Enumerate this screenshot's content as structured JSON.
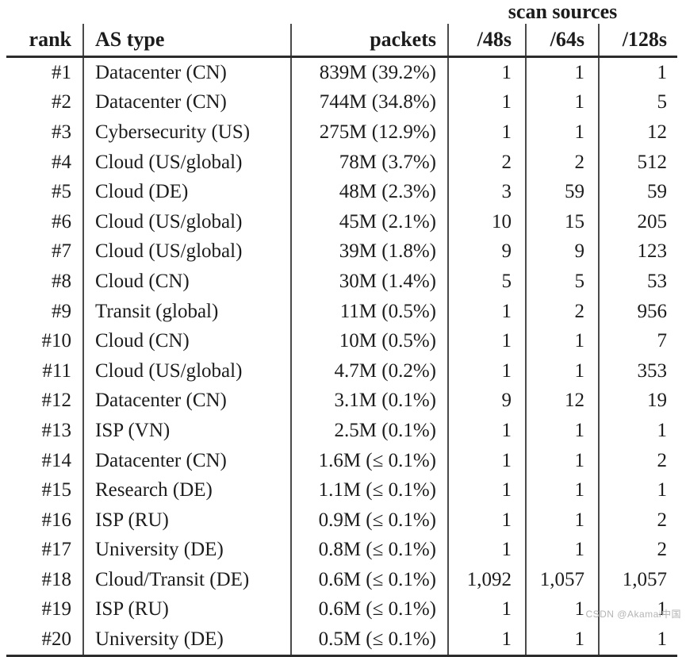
{
  "table": {
    "group_header": "scan sources",
    "columns": [
      {
        "key": "rank",
        "label": "rank"
      },
      {
        "key": "as_type",
        "label": "AS type"
      },
      {
        "key": "packets",
        "label": "packets"
      },
      {
        "key": "s48",
        "label": "/48s"
      },
      {
        "key": "s64",
        "label": "/64s"
      },
      {
        "key": "s128",
        "label": "/128s"
      }
    ],
    "rows": [
      [
        "#1",
        "Datacenter (CN)",
        "839M (39.2%)",
        "1",
        "1",
        "1"
      ],
      [
        "#2",
        "Datacenter (CN)",
        "744M (34.8%)",
        "1",
        "1",
        "5"
      ],
      [
        "#3",
        "Cybersecurity (US)",
        "275M (12.9%)",
        "1",
        "1",
        "12"
      ],
      [
        "#4",
        "Cloud (US/global)",
        "78M (3.7%)",
        "2",
        "2",
        "512"
      ],
      [
        "#5",
        "Cloud (DE)",
        "48M (2.3%)",
        "3",
        "59",
        "59"
      ],
      [
        "#6",
        "Cloud (US/global)",
        "45M (2.1%)",
        "10",
        "15",
        "205"
      ],
      [
        "#7",
        "Cloud (US/global)",
        "39M (1.8%)",
        "9",
        "9",
        "123"
      ],
      [
        "#8",
        "Cloud (CN)",
        "30M (1.4%)",
        "5",
        "5",
        "53"
      ],
      [
        "#9",
        "Transit (global)",
        "11M (0.5%)",
        "1",
        "2",
        "956"
      ],
      [
        "#10",
        "Cloud (CN)",
        "10M (0.5%)",
        "1",
        "1",
        "7"
      ],
      [
        "#11",
        "Cloud (US/global)",
        "4.7M (0.2%)",
        "1",
        "1",
        "353"
      ],
      [
        "#12",
        "Datacenter (CN)",
        "3.1M (0.1%)",
        "9",
        "12",
        "19"
      ],
      [
        "#13",
        "ISP (VN)",
        "2.5M (0.1%)",
        "1",
        "1",
        "1"
      ],
      [
        "#14",
        "Datacenter (CN)",
        "1.6M (≤ 0.1%)",
        "1",
        "1",
        "2"
      ],
      [
        "#15",
        "Research (DE)",
        "1.1M (≤ 0.1%)",
        "1",
        "1",
        "1"
      ],
      [
        "#16",
        "ISP (RU)",
        "0.9M (≤ 0.1%)",
        "1",
        "1",
        "2"
      ],
      [
        "#17",
        "University (DE)",
        "0.8M (≤ 0.1%)",
        "1",
        "1",
        "2"
      ],
      [
        "#18",
        "Cloud/Transit (DE)",
        "0.6M (≤ 0.1%)",
        "1,092",
        "1,057",
        "1,057"
      ],
      [
        "#19",
        "ISP (RU)",
        "0.6M (≤ 0.1%)",
        "1",
        "1",
        "1"
      ],
      [
        "#20",
        "University (DE)",
        "0.5M (≤ 0.1%)",
        "1",
        "1",
        "1"
      ]
    ]
  },
  "watermark": "CSDN @Akamai中国",
  "colors": {
    "text": "#1c1c1c",
    "rule": "#2c2c2c",
    "vertical_rule": "#4a4a4a",
    "watermark": "#b4b4b4",
    "background": "#ffffff"
  }
}
